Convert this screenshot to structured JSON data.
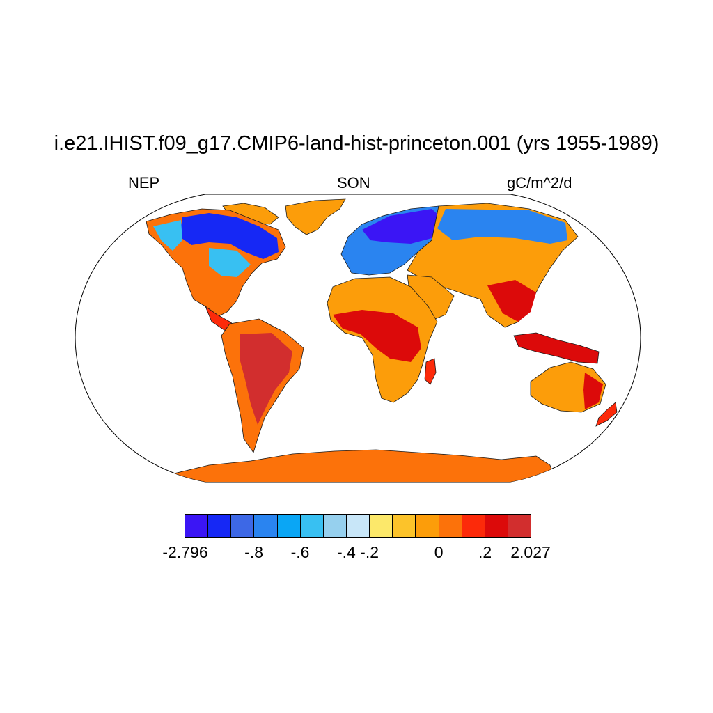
{
  "title": "i.e21.IHIST.f09_g17.CMIP6-land-hist-princeton.001 (yrs 1955-1989)",
  "labels": {
    "left": "NEP",
    "center": "SON",
    "right": "gC/m^2/d"
  },
  "map": {
    "projection": "Robinson",
    "variable": "NEP",
    "season": "SON",
    "units": "gC/m^2/d"
  },
  "colorbar": {
    "colors": [
      "#3b15f5",
      "#1628f5",
      "#3d68e6",
      "#2a84f0",
      "#0aa6f5",
      "#38c0f2",
      "#96d0ee",
      "#c8e6f8",
      "#fce86a",
      "#fcc32a",
      "#fc9d0a",
      "#fc720a",
      "#fc2a0a",
      "#dc0a0a",
      "#d22e2e"
    ],
    "tick_labels": [
      {
        "text": "-2.796",
        "boundary": 0
      },
      {
        "text": "-.8",
        "boundary": 2
      },
      {
        "text": "-.6",
        "boundary": 3
      },
      {
        "text": "-.4",
        "boundary": 4
      },
      {
        "text": "-.2",
        "boundary": 5
      },
      {
        "text": "0",
        "boundary": 6
      },
      {
        "text": ".2",
        "boundary": 7
      },
      {
        "text": "2.027",
        "boundary": 8
      }
    ]
  }
}
